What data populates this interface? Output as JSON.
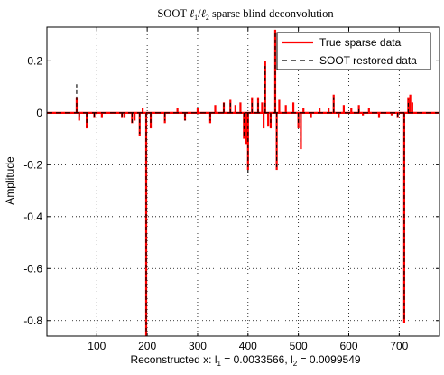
{
  "chart_data": {
    "type": "line",
    "title": {
      "prefix": "SOOT ",
      "l1": "ℓ",
      "sub1": "1",
      "slash": "/",
      "l2": "ℓ",
      "sub2": "2",
      "suffix": " sparse blind deconvolution"
    },
    "ylabel": "Amplitude",
    "xlabel": {
      "prefix": "Reconstructed x: l",
      "sub1": "1",
      "mid": " = 0.0033566, l",
      "sub2": "2",
      "suffix": " = 0.0099549"
    },
    "xlim": [
      1,
      780
    ],
    "ylim": [
      -0.86,
      0.33
    ],
    "xticks": [
      100,
      200,
      300,
      400,
      500,
      600,
      700
    ],
    "yticks": [
      0.2,
      0,
      -0.2,
      -0.4,
      -0.6,
      -0.8
    ],
    "grid": "dotted",
    "legend_position": "top-right",
    "colors": {
      "true": "#ff0000",
      "restored": "#000000",
      "grid": "#000000"
    },
    "series": [
      {
        "name": "True sparse data",
        "style": "solid",
        "color": "#ff0000",
        "points": [
          [
            60,
            0.06
          ],
          [
            65,
            -0.03
          ],
          [
            80,
            -0.06
          ],
          [
            95,
            -0.02
          ],
          [
            110,
            -0.02
          ],
          [
            150,
            -0.02
          ],
          [
            155,
            -0.02
          ],
          [
            170,
            -0.04
          ],
          [
            175,
            -0.03
          ],
          [
            185,
            -0.09
          ],
          [
            191,
            0.02
          ],
          [
            198,
            -0.86
          ],
          [
            207,
            -0.06
          ],
          [
            235,
            -0.04
          ],
          [
            260,
            0.02
          ],
          [
            275,
            -0.03
          ],
          [
            300,
            0.02
          ],
          [
            325,
            -0.04
          ],
          [
            335,
            0.03
          ],
          [
            352,
            0.04
          ],
          [
            365,
            0.05
          ],
          [
            375,
            0.03
          ],
          [
            385,
            0.04
          ],
          [
            392,
            -0.1
          ],
          [
            397,
            -0.12
          ],
          [
            400,
            -0.22
          ],
          [
            408,
            0.06
          ],
          [
            420,
            0.06
          ],
          [
            428,
            0.04
          ],
          [
            431,
            -0.06
          ],
          [
            434,
            0.2
          ],
          [
            440,
            -0.05
          ],
          [
            445,
            -0.06
          ],
          [
            454,
            0.32
          ],
          [
            457,
            -0.22
          ],
          [
            462,
            0.05
          ],
          [
            475,
            0.03
          ],
          [
            490,
            0.04
          ],
          [
            500,
            -0.06
          ],
          [
            505,
            -0.14
          ],
          [
            510,
            0.02
          ],
          [
            525,
            -0.02
          ],
          [
            542,
            0.02
          ],
          [
            560,
            0.02
          ],
          [
            570,
            0.07
          ],
          [
            580,
            -0.02
          ],
          [
            590,
            0.03
          ],
          [
            605,
            0.02
          ],
          [
            620,
            0.03
          ],
          [
            628,
            -0.01
          ],
          [
            640,
            0.02
          ],
          [
            660,
            -0.02
          ],
          [
            685,
            -0.01
          ],
          [
            697,
            -0.02
          ],
          [
            710,
            -0.81
          ],
          [
            718,
            0.06
          ],
          [
            722,
            0.07
          ],
          [
            726,
            0.04
          ]
        ]
      },
      {
        "name": "SOOT restored data",
        "style": "dashed",
        "color": "#000000",
        "points": [
          [
            60,
            0.11
          ],
          [
            65,
            -0.02
          ],
          [
            80,
            -0.05
          ],
          [
            95,
            -0.02
          ],
          [
            150,
            -0.02
          ],
          [
            170,
            -0.04
          ],
          [
            185,
            -0.08
          ],
          [
            198,
            -0.85
          ],
          [
            207,
            -0.05
          ],
          [
            235,
            -0.03
          ],
          [
            275,
            -0.03
          ],
          [
            325,
            -0.03
          ],
          [
            352,
            0.04
          ],
          [
            365,
            0.04
          ],
          [
            392,
            -0.09
          ],
          [
            400,
            -0.24
          ],
          [
            408,
            0.05
          ],
          [
            420,
            0.05
          ],
          [
            434,
            0.18
          ],
          [
            445,
            -0.05
          ],
          [
            454,
            0.31
          ],
          [
            457,
            -0.21
          ],
          [
            500,
            -0.05
          ],
          [
            505,
            -0.12
          ],
          [
            570,
            0.06
          ],
          [
            620,
            0.02
          ],
          [
            697,
            -0.02
          ],
          [
            710,
            -0.8
          ],
          [
            718,
            0.05
          ]
        ]
      }
    ]
  }
}
